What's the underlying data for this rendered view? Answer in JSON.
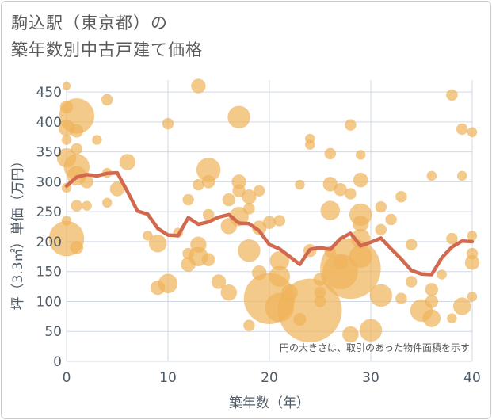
{
  "title": {
    "line1": "駒込駅（東京都）の",
    "line2": "築年数別中古戸建て価格"
  },
  "chart_data": {
    "type": "scatter",
    "title": "駒込駅（東京都）の 築年数別中古戸建て価格",
    "xlabel": "築年数（年）",
    "ylabel": "坪（3.3㎡）単価（万円）",
    "xlim": [
      0,
      40
    ],
    "ylim": [
      0,
      470
    ],
    "x_ticks": [
      0,
      10,
      20,
      30,
      40
    ],
    "y_ticks": [
      0,
      50,
      100,
      150,
      200,
      250,
      300,
      350,
      400,
      450
    ],
    "grid": true,
    "bubble_note": "円の大きさは、取引のあった物件面積を示す",
    "colors": {
      "bubble": "#f0b45a",
      "trend": "#d2694f"
    },
    "series": [
      {
        "kind": "bubble",
        "points": [
          {
            "x": 0,
            "y": 460,
            "s": 5
          },
          {
            "x": 0,
            "y": 425,
            "s": 8
          },
          {
            "x": 1,
            "y": 410,
            "s": 22
          },
          {
            "x": 0,
            "y": 390,
            "s": 10
          },
          {
            "x": 1,
            "y": 385,
            "s": 8
          },
          {
            "x": 0,
            "y": 370,
            "s": 6
          },
          {
            "x": 1,
            "y": 355,
            "s": 7
          },
          {
            "x": 0,
            "y": 340,
            "s": 12
          },
          {
            "x": 1,
            "y": 325,
            "s": 16
          },
          {
            "x": 1,
            "y": 310,
            "s": 12
          },
          {
            "x": 2,
            "y": 300,
            "s": 8
          },
          {
            "x": 0,
            "y": 290,
            "s": 6
          },
          {
            "x": 1,
            "y": 260,
            "s": 7
          },
          {
            "x": 0,
            "y": 235,
            "s": 6
          },
          {
            "x": 0,
            "y": 205,
            "s": 22
          },
          {
            "x": 1,
            "y": 190,
            "s": 8
          },
          {
            "x": 3,
            "y": 370,
            "s": 6
          },
          {
            "x": 2,
            "y": 260,
            "s": 6
          },
          {
            "x": 4,
            "y": 437,
            "s": 7
          },
          {
            "x": 4,
            "y": 315,
            "s": 6
          },
          {
            "x": 4,
            "y": 265,
            "s": 6
          },
          {
            "x": 5,
            "y": 288,
            "s": 9
          },
          {
            "x": 6,
            "y": 333,
            "s": 10
          },
          {
            "x": 8,
            "y": 210,
            "s": 6
          },
          {
            "x": 9,
            "y": 197,
            "s": 11
          },
          {
            "x": 9,
            "y": 123,
            "s": 9
          },
          {
            "x": 10,
            "y": 397,
            "s": 7
          },
          {
            "x": 10,
            "y": 130,
            "s": 12
          },
          {
            "x": 11,
            "y": 215,
            "s": 6
          },
          {
            "x": 12,
            "y": 270,
            "s": 7
          },
          {
            "x": 12,
            "y": 180,
            "s": 7
          },
          {
            "x": 12,
            "y": 162,
            "s": 9
          },
          {
            "x": 13,
            "y": 460,
            "s": 9
          },
          {
            "x": 13,
            "y": 295,
            "s": 7
          },
          {
            "x": 13,
            "y": 195,
            "s": 10
          },
          {
            "x": 13,
            "y": 175,
            "s": 12
          },
          {
            "x": 14,
            "y": 320,
            "s": 15
          },
          {
            "x": 14,
            "y": 300,
            "s": 8
          },
          {
            "x": 14,
            "y": 245,
            "s": 7
          },
          {
            "x": 14,
            "y": 170,
            "s": 8
          },
          {
            "x": 15,
            "y": 133,
            "s": 9
          },
          {
            "x": 16,
            "y": 270,
            "s": 8
          },
          {
            "x": 16,
            "y": 226,
            "s": 10
          },
          {
            "x": 16,
            "y": 115,
            "s": 10
          },
          {
            "x": 17,
            "y": 408,
            "s": 14
          },
          {
            "x": 17,
            "y": 300,
            "s": 9
          },
          {
            "x": 17,
            "y": 285,
            "s": 8
          },
          {
            "x": 17,
            "y": 242,
            "s": 12
          },
          {
            "x": 18,
            "y": 275,
            "s": 9
          },
          {
            "x": 18,
            "y": 255,
            "s": 7
          },
          {
            "x": 18,
            "y": 185,
            "s": 14
          },
          {
            "x": 18,
            "y": 60,
            "s": 7
          },
          {
            "x": 19,
            "y": 285,
            "s": 7
          },
          {
            "x": 19,
            "y": 223,
            "s": 9
          },
          {
            "x": 19,
            "y": 148,
            "s": 9
          },
          {
            "x": 20,
            "y": 232,
            "s": 8
          },
          {
            "x": 20,
            "y": 105,
            "s": 32
          },
          {
            "x": 21,
            "y": 235,
            "s": 7
          },
          {
            "x": 21,
            "y": 168,
            "s": 12
          },
          {
            "x": 21,
            "y": 142,
            "s": 13
          },
          {
            "x": 21,
            "y": 90,
            "s": 18
          },
          {
            "x": 22,
            "y": 115,
            "s": 10
          },
          {
            "x": 23,
            "y": 295,
            "s": 6
          },
          {
            "x": 23,
            "y": 70,
            "s": 8
          },
          {
            "x": 24,
            "y": 372,
            "s": 6
          },
          {
            "x": 24,
            "y": 362,
            "s": 6
          },
          {
            "x": 24,
            "y": 85,
            "s": 40
          },
          {
            "x": 24,
            "y": 185,
            "s": 8
          },
          {
            "x": 25,
            "y": 137,
            "s": 8
          },
          {
            "x": 25,
            "y": 115,
            "s": 7
          },
          {
            "x": 25,
            "y": 100,
            "s": 7
          },
          {
            "x": 26,
            "y": 347,
            "s": 7
          },
          {
            "x": 26,
            "y": 296,
            "s": 9
          },
          {
            "x": 26,
            "y": 252,
            "s": 12
          },
          {
            "x": 26,
            "y": 183,
            "s": 7
          },
          {
            "x": 27,
            "y": 287,
            "s": 8
          },
          {
            "x": 27,
            "y": 165,
            "s": 9
          },
          {
            "x": 27,
            "y": 150,
            "s": 22
          },
          {
            "x": 28,
            "y": 395,
            "s": 7
          },
          {
            "x": 28,
            "y": 280,
            "s": 7
          },
          {
            "x": 28,
            "y": 155,
            "s": 38
          },
          {
            "x": 28,
            "y": 45,
            "s": 10
          },
          {
            "x": 29,
            "y": 345,
            "s": 6
          },
          {
            "x": 29,
            "y": 303,
            "s": 9
          },
          {
            "x": 29,
            "y": 245,
            "s": 14
          },
          {
            "x": 29,
            "y": 230,
            "s": 10
          },
          {
            "x": 29,
            "y": 205,
            "s": 12
          },
          {
            "x": 29,
            "y": 175,
            "s": 14
          },
          {
            "x": 30,
            "y": 52,
            "s": 14
          },
          {
            "x": 31,
            "y": 258,
            "s": 7
          },
          {
            "x": 31,
            "y": 220,
            "s": 7
          },
          {
            "x": 31,
            "y": 110,
            "s": 14
          },
          {
            "x": 32,
            "y": 237,
            "s": 7
          },
          {
            "x": 33,
            "y": 275,
            "s": 7
          },
          {
            "x": 33,
            "y": 105,
            "s": 7
          },
          {
            "x": 34,
            "y": 133,
            "s": 7
          },
          {
            "x": 34,
            "y": 195,
            "s": 7
          },
          {
            "x": 35,
            "y": 85,
            "s": 14
          },
          {
            "x": 36,
            "y": 310,
            "s": 6
          },
          {
            "x": 36,
            "y": 120,
            "s": 8
          },
          {
            "x": 36,
            "y": 100,
            "s": 8
          },
          {
            "x": 36,
            "y": 72,
            "s": 11
          },
          {
            "x": 37,
            "y": 145,
            "s": 6
          },
          {
            "x": 38,
            "y": 445,
            "s": 7
          },
          {
            "x": 38,
            "y": 205,
            "s": 7
          },
          {
            "x": 38,
            "y": 72,
            "s": 6
          },
          {
            "x": 39,
            "y": 388,
            "s": 7
          },
          {
            "x": 39,
            "y": 310,
            "s": 6
          },
          {
            "x": 39,
            "y": 92,
            "s": 11
          },
          {
            "x": 40,
            "y": 383,
            "s": 6
          },
          {
            "x": 40,
            "y": 210,
            "s": 6
          },
          {
            "x": 40,
            "y": 180,
            "s": 7
          },
          {
            "x": 40,
            "y": 165,
            "s": 9
          },
          {
            "x": 40,
            "y": 108,
            "s": 6
          }
        ]
      },
      {
        "kind": "line",
        "x": [
          0,
          1,
          2,
          3,
          4,
          5,
          6,
          7,
          8,
          9,
          10,
          11,
          12,
          13,
          14,
          15,
          16,
          17,
          18,
          19,
          20,
          21,
          22,
          23,
          24,
          25,
          26,
          27,
          28,
          29,
          30,
          31,
          32,
          33,
          34,
          35,
          36,
          37,
          38,
          39,
          40
        ],
        "values": [
          293,
          308,
          312,
          310,
          314,
          315,
          284,
          251,
          246,
          222,
          211,
          210,
          240,
          229,
          233,
          241,
          245,
          231,
          230,
          218,
          195,
          188,
          175,
          162,
          187,
          190,
          187,
          205,
          214,
          193,
          199,
          206,
          188,
          171,
          152,
          146,
          145,
          173,
          191,
          201,
          200
        ]
      }
    ]
  }
}
